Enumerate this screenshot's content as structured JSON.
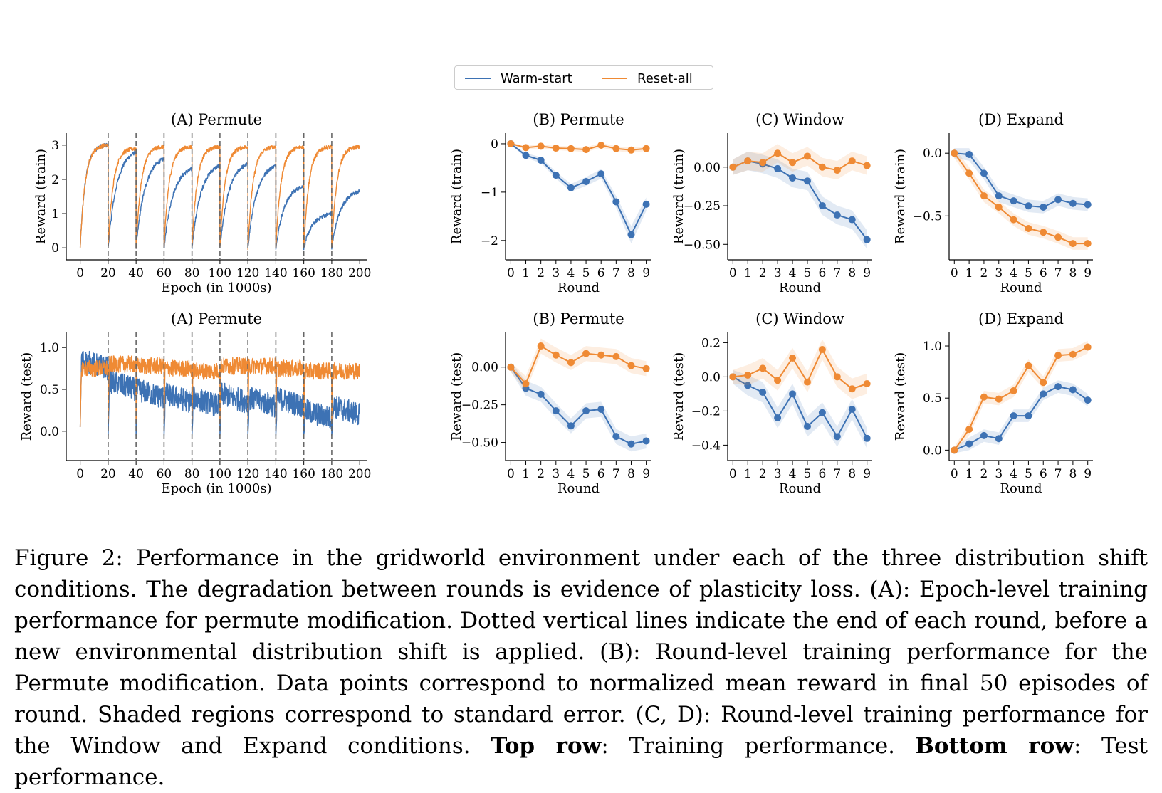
{
  "legend": {
    "items": [
      {
        "label": "Warm-start",
        "color": "#3d72b4"
      },
      {
        "label": "Reset-all",
        "color": "#ef8a34"
      }
    ],
    "placement": "top-center"
  },
  "colors": {
    "warm": "#3d72b4",
    "reset": "#ef8a34",
    "dashed": "#666666"
  },
  "caption": {
    "part1": "Figure 2:  Performance in the gridworld environment under each of the three distribution shift conditions. The degradation between rounds is evidence of plasticity loss. (A): Epoch-level training performance for permute modification. Dotted vertical lines indicate the end of each round, before a new environmental distribution shift is applied.  (B): Round-level training performance for the Permute modification. Data points correspond to normalized mean reward in final 50 episodes of round. Shaded regions correspond to standard error. (C, D): Round-level training performance for the Window and Expand conditions. ",
    "bold1": "Top row",
    "part2": ": Training performance. ",
    "bold2": "Bottom row",
    "part3": ": Test performance."
  },
  "chart_data": [
    {
      "type": "line",
      "title": "(A) Permute",
      "xlabel": "Epoch (in 1000s)",
      "ylabel": "Reward (train)",
      "xlim": [
        -10,
        205
      ],
      "ylim": [
        -0.35,
        3.35
      ],
      "xticks": [
        0,
        20,
        40,
        60,
        80,
        100,
        120,
        140,
        160,
        180,
        200
      ],
      "yticks": [
        0,
        1,
        2,
        3
      ],
      "ytick_labels": [
        "0",
        "1",
        "2",
        "3"
      ],
      "round_boundaries": [
        20,
        40,
        60,
        80,
        100,
        120,
        140,
        160,
        180
      ],
      "series": [
        {
          "name": "Warm-start",
          "round_end_values": [
            3.0,
            2.8,
            2.6,
            2.3,
            2.4,
            2.45,
            2.4,
            1.8,
            1.0,
            1.65
          ],
          "round_start_value": 0.0
        },
        {
          "name": "Reset-all",
          "round_end_values": [
            3.0,
            2.9,
            2.95,
            2.95,
            2.95,
            2.95,
            2.95,
            2.95,
            2.95,
            2.95
          ],
          "round_start_value": 0.0
        }
      ]
    },
    {
      "type": "line",
      "title": "(B) Permute",
      "xlabel": "Round",
      "ylabel": "Reward (train)",
      "x": [
        0,
        1,
        2,
        3,
        4,
        5,
        6,
        7,
        8,
        9
      ],
      "xlim": [
        -0.35,
        9.35
      ],
      "ylim": [
        -2.4,
        0.22
      ],
      "yticks": [
        0,
        -1,
        -2
      ],
      "ytick_labels": [
        "0",
        "−1",
        "−2"
      ],
      "series": [
        {
          "name": "Warm-start",
          "values": [
            0,
            -0.24,
            -0.34,
            -0.65,
            -0.91,
            -0.78,
            -0.62,
            -1.2,
            -1.88,
            -1.25
          ],
          "stderr": [
            0.02,
            0.05,
            0.06,
            0.07,
            0.08,
            0.09,
            0.1,
            0.12,
            0.18,
            0.14
          ]
        },
        {
          "name": "Reset-all",
          "values": [
            0,
            -0.08,
            -0.05,
            -0.09,
            -0.1,
            -0.12,
            -0.03,
            -0.1,
            -0.13,
            -0.1
          ],
          "stderr": [
            0.02,
            0.04,
            0.04,
            0.04,
            0.05,
            0.05,
            0.05,
            0.05,
            0.05,
            0.05
          ]
        }
      ]
    },
    {
      "type": "line",
      "title": "(C) Window",
      "xlabel": "Round",
      "ylabel": "Reward (train)",
      "x": [
        0,
        1,
        2,
        3,
        4,
        5,
        6,
        7,
        8,
        9
      ],
      "xlim": [
        -0.35,
        9.35
      ],
      "ylim": [
        -0.6,
        0.22
      ],
      "yticks": [
        0,
        -0.25,
        -0.5
      ],
      "ytick_labels": [
        "0.00",
        "−0.25",
        "−0.50"
      ],
      "series": [
        {
          "name": "Warm-start",
          "values": [
            0,
            0.04,
            0.02,
            -0.01,
            -0.07,
            -0.09,
            -0.25,
            -0.31,
            -0.34,
            -0.47
          ],
          "stderr": [
            0.05,
            0.06,
            0.06,
            0.06,
            0.06,
            0.06,
            0.06,
            0.06,
            0.06,
            0.06
          ]
        },
        {
          "name": "Reset-all",
          "values": [
            0,
            0.04,
            0.03,
            0.09,
            0.03,
            0.07,
            0.0,
            -0.02,
            0.04,
            0.01
          ],
          "stderr": [
            0.05,
            0.06,
            0.06,
            0.06,
            0.06,
            0.06,
            0.06,
            0.06,
            0.06,
            0.06
          ]
        }
      ]
    },
    {
      "type": "line",
      "title": "(D) Expand",
      "xlabel": "Round",
      "ylabel": "Reward (train)",
      "x": [
        0,
        1,
        2,
        3,
        4,
        5,
        6,
        7,
        8,
        9
      ],
      "xlim": [
        -0.35,
        9.35
      ],
      "ylim": [
        -0.85,
        0.16
      ],
      "yticks": [
        0,
        -0.5
      ],
      "ytick_labels": [
        "0.0",
        "−0.5"
      ],
      "series": [
        {
          "name": "Warm-start",
          "values": [
            0,
            -0.01,
            -0.16,
            -0.34,
            -0.38,
            -0.42,
            -0.43,
            -0.37,
            -0.4,
            -0.41
          ],
          "stderr": [
            0.04,
            0.05,
            0.05,
            0.05,
            0.05,
            0.05,
            0.05,
            0.05,
            0.05,
            0.05
          ]
        },
        {
          "name": "Reset-all",
          "values": [
            0,
            -0.16,
            -0.34,
            -0.43,
            -0.53,
            -0.6,
            -0.63,
            -0.67,
            -0.72,
            -0.72
          ],
          "stderr": [
            0.04,
            0.05,
            0.05,
            0.05,
            0.05,
            0.05,
            0.05,
            0.05,
            0.05,
            0.05
          ]
        }
      ]
    },
    {
      "type": "line",
      "title": "(A) Permute",
      "xlabel": "Epoch (in 1000s)",
      "ylabel": "Reward (test)",
      "xlim": [
        -10,
        205
      ],
      "ylim": [
        -0.35,
        1.18
      ],
      "xticks": [
        0,
        20,
        40,
        60,
        80,
        100,
        120,
        140,
        160,
        180,
        200
      ],
      "yticks": [
        0,
        0.5,
        1.0
      ],
      "ytick_labels": [
        "0.0",
        "0.5",
        "1.0"
      ],
      "round_boundaries": [
        20,
        40,
        60,
        80,
        100,
        120,
        140,
        160,
        180
      ],
      "series": [
        {
          "name": "Warm-start",
          "round_mean_values": [
            0.75,
            0.5,
            0.4,
            0.35,
            0.3,
            0.35,
            0.3,
            0.3,
            0.15,
            0.2
          ]
        },
        {
          "name": "Reset-all",
          "round_mean_values": [
            0.75,
            0.8,
            0.78,
            0.75,
            0.72,
            0.78,
            0.78,
            0.75,
            0.72,
            0.72
          ]
        }
      ]
    },
    {
      "type": "line",
      "title": "(B) Permute",
      "xlabel": "Round",
      "ylabel": "Reward (test)",
      "x": [
        0,
        1,
        2,
        3,
        4,
        5,
        6,
        7,
        8,
        9
      ],
      "xlim": [
        -0.35,
        9.35
      ],
      "ylim": [
        -0.62,
        0.23
      ],
      "yticks": [
        0,
        -0.25,
        -0.5
      ],
      "ytick_labels": [
        "0.00",
        "−0.25",
        "−0.50"
      ],
      "series": [
        {
          "name": "Warm-start",
          "values": [
            0,
            -0.14,
            -0.18,
            -0.29,
            -0.39,
            -0.29,
            -0.28,
            -0.46,
            -0.51,
            -0.49
          ],
          "stderr": [
            0.03,
            0.05,
            0.05,
            0.05,
            0.05,
            0.05,
            0.05,
            0.05,
            0.05,
            0.05
          ]
        },
        {
          "name": "Reset-all",
          "values": [
            0,
            -0.11,
            0.14,
            0.08,
            0.03,
            0.09,
            0.08,
            0.07,
            0.01,
            -0.01
          ],
          "stderr": [
            0.03,
            0.05,
            0.05,
            0.05,
            0.05,
            0.05,
            0.05,
            0.05,
            0.05,
            0.05
          ]
        }
      ]
    },
    {
      "type": "line",
      "title": "(C) Window",
      "xlabel": "Round",
      "ylabel": "Reward (test)",
      "x": [
        0,
        1,
        2,
        3,
        4,
        5,
        6,
        7,
        8,
        9
      ],
      "xlim": [
        -0.35,
        9.35
      ],
      "ylim": [
        -0.49,
        0.26
      ],
      "yticks": [
        0.2,
        0,
        -0.2,
        -0.4
      ],
      "ytick_labels": [
        "0.2",
        "0.0",
        "−0.2",
        "−0.4"
      ],
      "series": [
        {
          "name": "Warm-start",
          "values": [
            0,
            -0.05,
            -0.09,
            -0.24,
            -0.1,
            -0.29,
            -0.21,
            -0.35,
            -0.19,
            -0.36
          ],
          "stderr": [
            0.04,
            0.06,
            0.06,
            0.06,
            0.06,
            0.06,
            0.06,
            0.06,
            0.06,
            0.06
          ]
        },
        {
          "name": "Reset-all",
          "values": [
            0,
            0.01,
            0.05,
            -0.02,
            0.11,
            -0.03,
            0.16,
            0.0,
            -0.07,
            -0.04
          ],
          "stderr": [
            0.04,
            0.06,
            0.06,
            0.06,
            0.06,
            0.06,
            0.06,
            0.06,
            0.06,
            0.06
          ]
        }
      ]
    },
    {
      "type": "line",
      "title": "(D) Expand",
      "xlabel": "Round",
      "ylabel": "Reward (test)",
      "x": [
        0,
        1,
        2,
        3,
        4,
        5,
        6,
        7,
        8,
        9
      ],
      "xlim": [
        -0.35,
        9.35
      ],
      "ylim": [
        -0.1,
        1.13
      ],
      "yticks": [
        0,
        0.5,
        1.0
      ],
      "ytick_labels": [
        "0.0",
        "0.5",
        "1.0"
      ],
      "series": [
        {
          "name": "Warm-start",
          "values": [
            0,
            0.06,
            0.14,
            0.11,
            0.33,
            0.33,
            0.54,
            0.61,
            0.58,
            0.48
          ],
          "stderr": [
            0.03,
            0.06,
            0.06,
            0.06,
            0.06,
            0.06,
            0.06,
            0.06,
            0.06,
            0.06
          ]
        },
        {
          "name": "Reset-all",
          "values": [
            0,
            0.2,
            0.51,
            0.49,
            0.57,
            0.81,
            0.65,
            0.91,
            0.92,
            0.99
          ],
          "stderr": [
            0.03,
            0.06,
            0.06,
            0.06,
            0.06,
            0.06,
            0.06,
            0.06,
            0.06,
            0.06
          ]
        }
      ]
    }
  ]
}
